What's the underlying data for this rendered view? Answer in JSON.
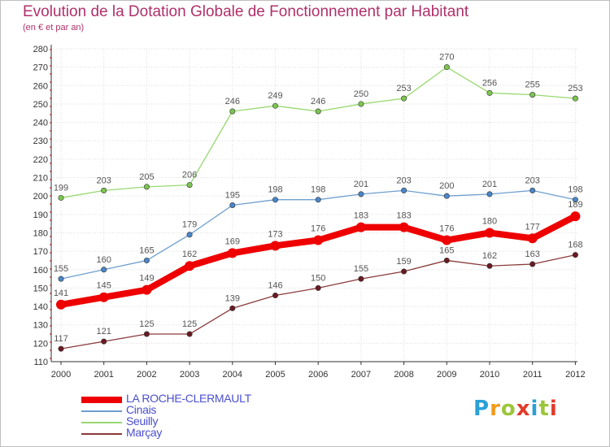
{
  "title": "Evolution de la Dotation Globale de Fonctionnement par Habitant",
  "subtitle": "(en € et par an)",
  "logo": {
    "parts": [
      "P",
      "r",
      "o",
      "x",
      "i",
      "t",
      "i"
    ],
    "colors": [
      "#2aa0d8",
      "#f29a1e",
      "#9cc63a",
      "#e23a2a",
      "#2aa0d8",
      "#9cc63a",
      "#e23a2a"
    ]
  },
  "chart_data": {
    "type": "line",
    "title": "Evolution de la Dotation Globale de Fonctionnement par Habitant",
    "subtitle": "(en € et par an)",
    "xlabel": "",
    "ylabel": "",
    "x": [
      "2000",
      "2001",
      "2002",
      "2003",
      "2004",
      "2005",
      "2006",
      "2007",
      "2008",
      "2009",
      "2010",
      "2011",
      "2012"
    ],
    "ylim": [
      110,
      280
    ],
    "yticks": [
      110,
      120,
      130,
      140,
      150,
      160,
      170,
      180,
      190,
      200,
      210,
      220,
      230,
      240,
      250,
      260,
      270,
      280
    ],
    "grid": true,
    "legend_position": "bottom-left",
    "series": [
      {
        "name": "LA ROCHE-CLERMAULT",
        "color": "#ee0000",
        "marker_color": "#ee0000",
        "values": [
          141,
          145,
          149,
          162,
          169,
          173,
          176,
          183,
          183,
          176,
          180,
          177,
          189
        ]
      },
      {
        "name": "Cinais",
        "color": "#6f9fd0",
        "marker_color": "#4a86c8",
        "values": [
          155,
          160,
          165,
          179,
          195,
          198,
          198,
          201,
          203,
          200,
          201,
          203,
          198
        ]
      },
      {
        "name": "Seuilly",
        "color": "#98d870",
        "marker_color": "#7cc650",
        "values": [
          199,
          203,
          205,
          206,
          246,
          249,
          246,
          250,
          253,
          270,
          256,
          255,
          253
        ]
      },
      {
        "name": "Marçay",
        "color": "#8a3a3a",
        "marker_color": "#6a1a22",
        "values": [
          117,
          121,
          125,
          125,
          139,
          146,
          150,
          155,
          159,
          165,
          162,
          163,
          168
        ]
      }
    ]
  }
}
